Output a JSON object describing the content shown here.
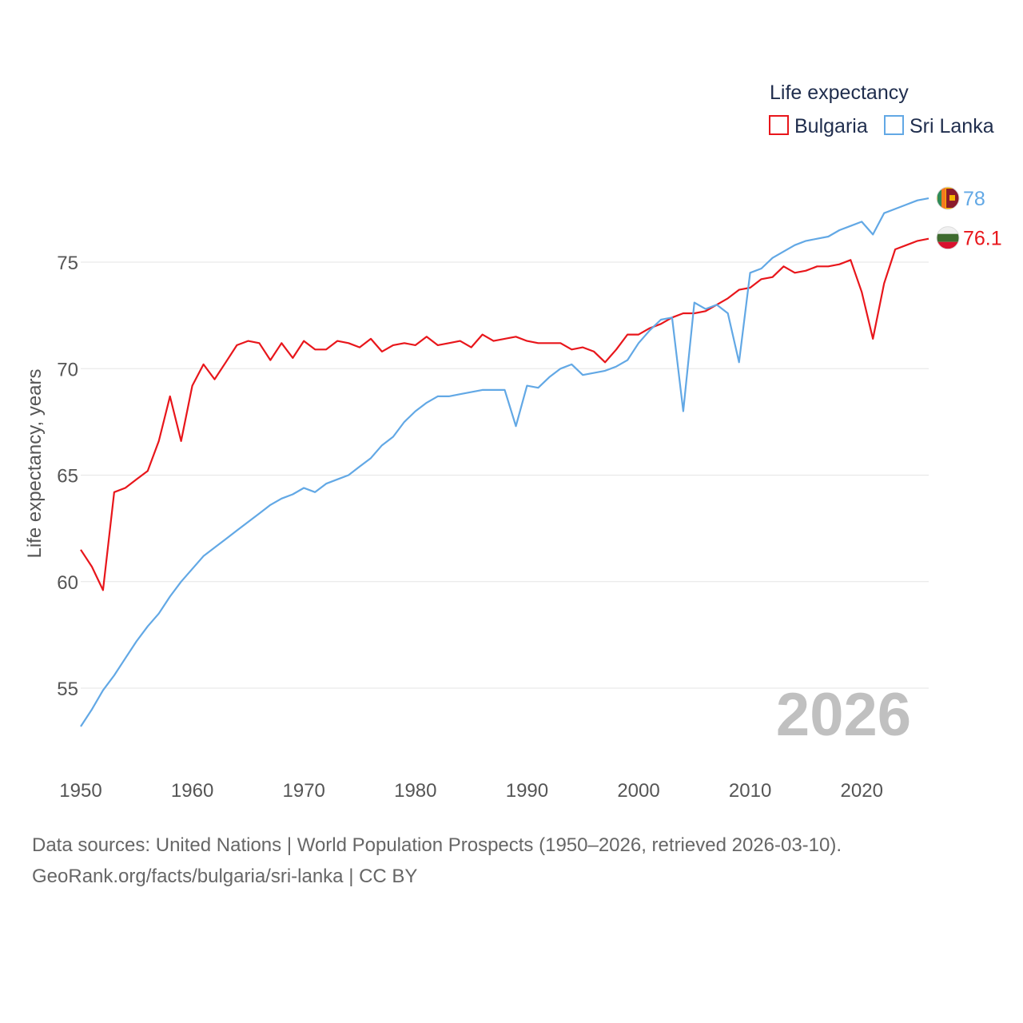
{
  "chart_data": {
    "type": "line",
    "legend_title": "Life expectancy",
    "ylabel": "Life expectancy, years",
    "xlabel": "",
    "xlim": [
      1950,
      2026
    ],
    "ylim": [
      52.5,
      80
    ],
    "xticks": [
      1950,
      1960,
      1970,
      1980,
      1990,
      2000,
      2010,
      2020
    ],
    "yticks": [
      55,
      60,
      65,
      70,
      75
    ],
    "grid": true,
    "legend_position": "top-right",
    "current_year_label": "2026",
    "x": [
      1950,
      1951,
      1952,
      1953,
      1954,
      1955,
      1956,
      1957,
      1958,
      1959,
      1960,
      1961,
      1962,
      1963,
      1964,
      1965,
      1966,
      1967,
      1968,
      1969,
      1970,
      1971,
      1972,
      1973,
      1974,
      1975,
      1976,
      1977,
      1978,
      1979,
      1980,
      1981,
      1982,
      1983,
      1984,
      1985,
      1986,
      1987,
      1988,
      1989,
      1990,
      1991,
      1992,
      1993,
      1994,
      1995,
      1996,
      1997,
      1998,
      1999,
      2000,
      2001,
      2002,
      2003,
      2004,
      2005,
      2006,
      2007,
      2008,
      2009,
      2010,
      2011,
      2012,
      2013,
      2014,
      2015,
      2016,
      2017,
      2018,
      2019,
      2020,
      2021,
      2022,
      2023,
      2024,
      2025,
      2026
    ],
    "series": [
      {
        "name": "Bulgaria",
        "color": "#e8161b",
        "end_label": "76.1",
        "flag": "bulgaria-flag-icon",
        "values": [
          61.5,
          60.7,
          59.6,
          64.2,
          64.4,
          64.8,
          65.2,
          66.6,
          68.7,
          66.6,
          69.2,
          70.2,
          69.5,
          70.3,
          71.1,
          71.3,
          71.2,
          70.4,
          71.2,
          70.5,
          71.3,
          70.9,
          70.9,
          71.3,
          71.2,
          71.0,
          71.4,
          70.8,
          71.1,
          71.2,
          71.1,
          71.5,
          71.1,
          71.2,
          71.3,
          71.0,
          71.6,
          71.3,
          71.4,
          71.5,
          71.3,
          71.2,
          71.2,
          71.2,
          70.9,
          71.0,
          70.8,
          70.3,
          70.9,
          71.6,
          71.6,
          71.9,
          72.1,
          72.4,
          72.6,
          72.6,
          72.7,
          73.0,
          73.3,
          73.7,
          73.8,
          74.2,
          74.3,
          74.8,
          74.5,
          74.6,
          74.8,
          74.8,
          74.9,
          75.1,
          73.6,
          71.4,
          74.0,
          75.6,
          75.8,
          76.0,
          76.1
        ]
      },
      {
        "name": "Sri Lanka",
        "color": "#62a8e5",
        "end_label": "78",
        "flag": "sri-lanka-flag-icon",
        "values": [
          53.2,
          54.0,
          54.9,
          55.6,
          56.4,
          57.2,
          57.9,
          58.5,
          59.3,
          60.0,
          60.6,
          61.2,
          61.6,
          62.0,
          62.4,
          62.8,
          63.2,
          63.6,
          63.9,
          64.1,
          64.4,
          64.2,
          64.6,
          64.8,
          65.0,
          65.4,
          65.8,
          66.4,
          66.8,
          67.5,
          68.0,
          68.4,
          68.7,
          68.7,
          68.8,
          68.9,
          69.0,
          69.0,
          69.0,
          67.3,
          69.2,
          69.1,
          69.6,
          70.0,
          70.2,
          69.7,
          69.8,
          69.9,
          70.1,
          70.4,
          71.2,
          71.8,
          72.3,
          72.4,
          68.0,
          73.1,
          72.8,
          73.0,
          72.6,
          70.3,
          74.5,
          74.7,
          75.2,
          75.5,
          75.8,
          76.0,
          76.1,
          76.2,
          76.5,
          76.7,
          76.9,
          76.3,
          77.3,
          77.5,
          77.7,
          77.9,
          78.0
        ]
      }
    ]
  },
  "footer": {
    "sources": "Data sources: United Nations | World Population Prospects (1950–2026, retrieved 2026-03-10).",
    "credit": "GeoRank.org/facts/bulgaria/sri-lanka | CC BY"
  }
}
